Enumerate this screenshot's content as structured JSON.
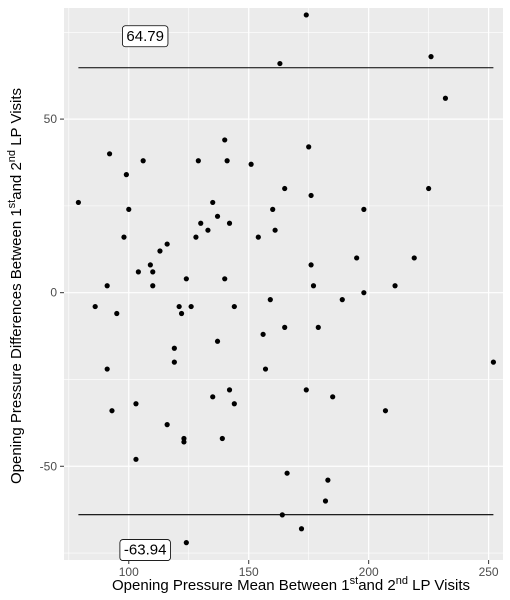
{
  "chart_data": {
    "type": "scatter",
    "title": "",
    "xlabel": {
      "text1": "Opening Pressure Mean Between 1",
      "sup1": "st",
      "text2": "and 2",
      "sup2": "nd",
      "text3": " LP Visits"
    },
    "ylabel": {
      "text1": "Opening Pressure Differences Between 1",
      "sup1": "st",
      "text2": "and 2",
      "sup2": "nd",
      "text3": " LP Visits"
    },
    "xlim": [
      73,
      256
    ],
    "ylim": [
      -77,
      82
    ],
    "xticks": [
      100,
      150,
      200,
      250
    ],
    "yticks": [
      -50,
      0,
      50
    ],
    "xtick_labels": [
      "100",
      "150",
      "200",
      "250"
    ],
    "ytick_labels": [
      "-50",
      "0",
      "50"
    ],
    "grid": true,
    "background": "#ebebeb",
    "point_color": "#000000",
    "limit_lines": [
      {
        "y": 64.79,
        "x_range": [
          79,
          252
        ],
        "label": "64.79",
        "label_at": [
          96,
          74
        ]
      },
      {
        "y": -63.94,
        "x_range": [
          79,
          252
        ],
        "label": "-63.94",
        "label_at": [
          96,
          -74
        ]
      }
    ],
    "points": [
      [
        79,
        26
      ],
      [
        86,
        -4
      ],
      [
        91,
        2
      ],
      [
        91,
        -22
      ],
      [
        92,
        40
      ],
      [
        93,
        -34
      ],
      [
        95,
        -6
      ],
      [
        98,
        16
      ],
      [
        99,
        34
      ],
      [
        100,
        24
      ],
      [
        103,
        -32
      ],
      [
        103,
        -48
      ],
      [
        104,
        6
      ],
      [
        106,
        38
      ],
      [
        109,
        8
      ],
      [
        110,
        6
      ],
      [
        110,
        2
      ],
      [
        113,
        12
      ],
      [
        116,
        14
      ],
      [
        116,
        -38
      ],
      [
        119,
        -16
      ],
      [
        119,
        -20
      ],
      [
        121,
        -4
      ],
      [
        122,
        -6
      ],
      [
        123,
        -42
      ],
      [
        123,
        -43
      ],
      [
        124,
        4
      ],
      [
        124,
        -72
      ],
      [
        126,
        -4
      ],
      [
        128,
        16
      ],
      [
        129,
        38
      ],
      [
        130,
        20
      ],
      [
        133,
        18
      ],
      [
        135,
        26
      ],
      [
        135,
        -30
      ],
      [
        137,
        22
      ],
      [
        137,
        -14
      ],
      [
        139,
        -42
      ],
      [
        140,
        44
      ],
      [
        140,
        4
      ],
      [
        141,
        38
      ],
      [
        142,
        20
      ],
      [
        142,
        -28
      ],
      [
        144,
        -4
      ],
      [
        144,
        -32
      ],
      [
        151,
        37
      ],
      [
        154,
        16
      ],
      [
        156,
        -12
      ],
      [
        157,
        -22
      ],
      [
        159,
        -2
      ],
      [
        160,
        24
      ],
      [
        161,
        18
      ],
      [
        163,
        66
      ],
      [
        164,
        -64
      ],
      [
        165,
        30
      ],
      [
        165,
        -10
      ],
      [
        166,
        -52
      ],
      [
        172,
        -68
      ],
      [
        174,
        80
      ],
      [
        174,
        -28
      ],
      [
        175,
        42
      ],
      [
        176,
        28
      ],
      [
        176,
        8
      ],
      [
        177,
        2
      ],
      [
        179,
        -10
      ],
      [
        182,
        -60
      ],
      [
        183,
        -54
      ],
      [
        185,
        -30
      ],
      [
        189,
        -2
      ],
      [
        195,
        10
      ],
      [
        198,
        24
      ],
      [
        198,
        0
      ],
      [
        207,
        -34
      ],
      [
        211,
        2
      ],
      [
        219,
        10
      ],
      [
        225,
        30
      ],
      [
        226,
        68
      ],
      [
        232,
        56
      ],
      [
        252,
        -20
      ]
    ]
  }
}
